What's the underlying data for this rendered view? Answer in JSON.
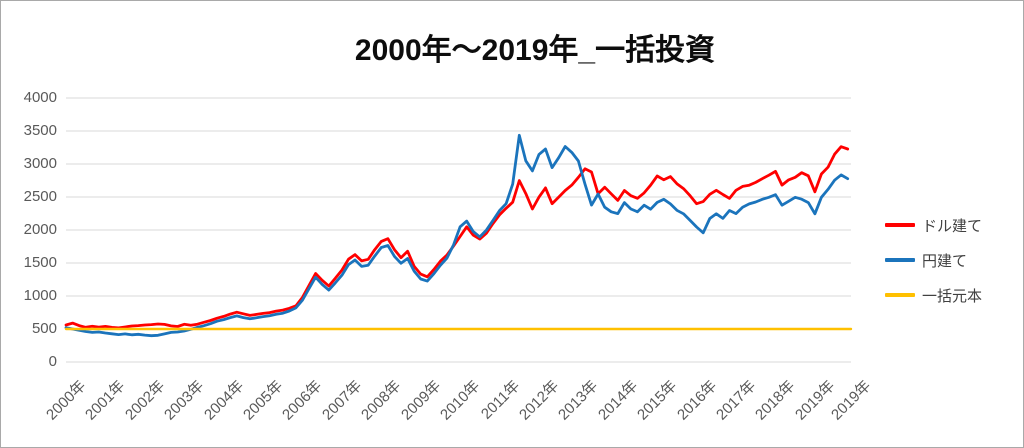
{
  "chart_data": {
    "type": "line",
    "title": "2000年～2019年_一括投資",
    "ylim": [
      0,
      4000
    ],
    "yticks": [
      0,
      500,
      1000,
      1500,
      2000,
      2500,
      3000,
      3500,
      4000
    ],
    "grid": "horizontal",
    "legend_position": "right",
    "total_months": 239,
    "step_months": 2,
    "colors": {
      "grid": "#d9d9d9",
      "axis_text": "#595959",
      "legend_text": "#404040",
      "title_text": "#0d0d0d",
      "series_red": "#ff0000",
      "series_blue": "#1b74bc",
      "series_gold": "#ffc000"
    },
    "xticks": [
      {
        "label": "2000年",
        "month": 0
      },
      {
        "label": "2001年",
        "month": 12
      },
      {
        "label": "2002年",
        "month": 24
      },
      {
        "label": "2003年",
        "month": 36
      },
      {
        "label": "2004年",
        "month": 48
      },
      {
        "label": "2005年",
        "month": 60
      },
      {
        "label": "2006年",
        "month": 72
      },
      {
        "label": "2007年",
        "month": 84
      },
      {
        "label": "2008年",
        "month": 96
      },
      {
        "label": "2009年",
        "month": 108
      },
      {
        "label": "2010年",
        "month": 120
      },
      {
        "label": "2011年",
        "month": 132
      },
      {
        "label": "2012年",
        "month": 144
      },
      {
        "label": "2013年",
        "month": 156
      },
      {
        "label": "2014年",
        "month": 168
      },
      {
        "label": "2015年",
        "month": 180
      },
      {
        "label": "2016年",
        "month": 192
      },
      {
        "label": "2017年",
        "month": 204
      },
      {
        "label": "2018年",
        "month": 216
      },
      {
        "label": "2019年",
        "month": 228
      },
      {
        "label": "2019年",
        "month": 239
      }
    ],
    "series": [
      {
        "name": "ドル建て",
        "color": "#ff0000",
        "stroke_width": 2.8,
        "values": [
          560,
          590,
          552,
          526,
          541,
          529,
          540,
          524,
          516,
          531,
          546,
          551,
          561,
          566,
          576,
          569,
          547,
          538,
          571,
          558,
          572,
          601,
          629,
          664,
          691,
          726,
          754,
          731,
          706,
          721,
          736,
          749,
          771,
          786,
          814,
          851,
          981,
          1162,
          1341,
          1238,
          1152,
          1268,
          1392,
          1558,
          1628,
          1532,
          1556,
          1701,
          1828,
          1868,
          1702,
          1581,
          1679,
          1448,
          1332,
          1291,
          1402,
          1528,
          1621,
          1759,
          1902,
          2048,
          1921,
          1862,
          1951,
          2099,
          2231,
          2329,
          2421,
          2748,
          2552,
          2318,
          2498,
          2638,
          2398,
          2498,
          2598,
          2680,
          2798,
          2928,
          2879,
          2548,
          2649,
          2548,
          2449,
          2598,
          2519,
          2481,
          2562,
          2679,
          2818,
          2761,
          2809,
          2701,
          2628,
          2519,
          2398,
          2431,
          2541,
          2601,
          2538,
          2479,
          2602,
          2661,
          2679,
          2721,
          2778,
          2831,
          2888,
          2681,
          2759,
          2798,
          2868,
          2821,
          2579,
          2848,
          2951,
          3148,
          3262,
          3228
        ]
      },
      {
        "name": "円建て",
        "color": "#1b74bc",
        "stroke_width": 2.8,
        "values": [
          520,
          500,
          480,
          462,
          448,
          455,
          440,
          428,
          415,
          425,
          412,
          420,
          408,
          398,
          405,
          425,
          448,
          455,
          470,
          495,
          525,
          550,
          580,
          618,
          642,
          672,
          698,
          672,
          654,
          669,
          688,
          702,
          724,
          740,
          772,
          819,
          938,
          1115,
          1285,
          1176,
          1090,
          1198,
          1315,
          1476,
          1545,
          1448,
          1466,
          1605,
          1735,
          1765,
          1600,
          1495,
          1568,
          1376,
          1258,
          1226,
          1338,
          1465,
          1576,
          1778,
          2048,
          2135,
          1976,
          1895,
          1998,
          2146,
          2295,
          2398,
          2695,
          3435,
          3048,
          2895,
          3145,
          3228,
          2945,
          3095,
          3265,
          3176,
          3045,
          2695,
          2378,
          2545,
          2346,
          2275,
          2248,
          2415,
          2318,
          2275,
          2376,
          2315,
          2418,
          2465,
          2395,
          2298,
          2245,
          2145,
          2045,
          1958,
          2175,
          2245,
          2176,
          2295,
          2248,
          2345,
          2395,
          2425,
          2465,
          2495,
          2535,
          2376,
          2435,
          2495,
          2466,
          2415,
          2246,
          2495,
          2615,
          2755,
          2835,
          2778
        ]
      },
      {
        "name": "一括元本",
        "color": "#ffc000",
        "stroke_width": 2.4,
        "x": [
          0,
          239
        ],
        "values": [
          500,
          500
        ]
      }
    ]
  }
}
